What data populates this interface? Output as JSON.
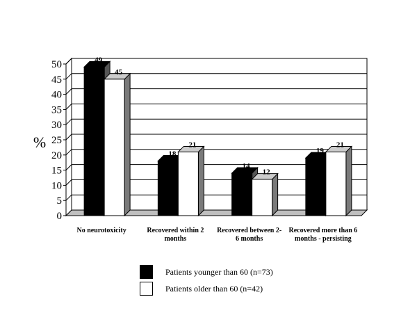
{
  "chart_data": {
    "type": "bar",
    "ylabel": "%",
    "ylim": [
      0,
      50
    ],
    "yticks": [
      0,
      5,
      10,
      15,
      20,
      25,
      30,
      35,
      40,
      45,
      50
    ],
    "grid": true,
    "three_d": true,
    "legend_position": "bottom-center",
    "categories": [
      [
        "No neurotoxicity"
      ],
      [
        "Recovered within 2",
        "months"
      ],
      [
        "Recovered between 2-",
        "6 months"
      ],
      [
        "Recovered more than 6",
        "months - persisting"
      ]
    ],
    "series": [
      {
        "name": "Patients younger than 60 (n=73)",
        "values": [
          49,
          18,
          14,
          19
        ],
        "color": "#000000"
      },
      {
        "name": "Patients older than 60 (n=42)",
        "values": [
          45,
          21,
          12,
          21
        ],
        "color": "#ffffff"
      }
    ]
  }
}
